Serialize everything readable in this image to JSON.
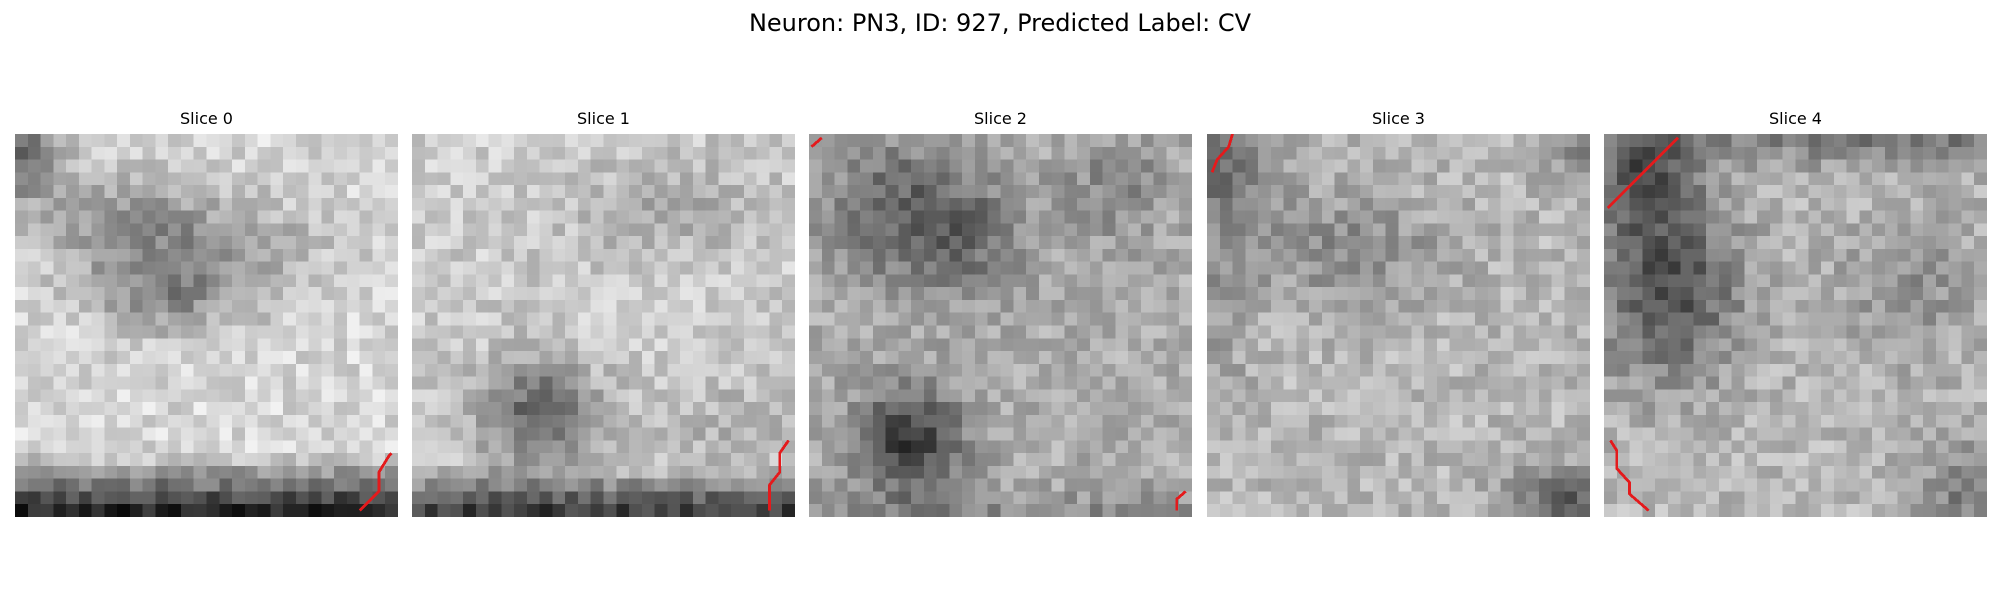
{
  "figure": {
    "suptitle": "Neuron: PN3, ID: 927, Predicted Label: CV"
  },
  "panels": [
    {
      "title": "Slice 0",
      "dark_blobs": [
        "center",
        "bottom edge"
      ]
    },
    {
      "title": "Slice 1",
      "dark_blobs": [
        "lower middle",
        "bottom edge"
      ]
    },
    {
      "title": "Slice 2",
      "dark_blobs": [
        "upper left",
        "lower middle"
      ]
    },
    {
      "title": "Slice 3",
      "dark_blobs": [
        "faint center",
        "corners"
      ]
    },
    {
      "title": "Slice 4",
      "dark_blobs": [
        "left middle",
        "top edge"
      ]
    }
  ],
  "overlay": {
    "contour_color": "#e41a1c",
    "colormap": "gray"
  }
}
